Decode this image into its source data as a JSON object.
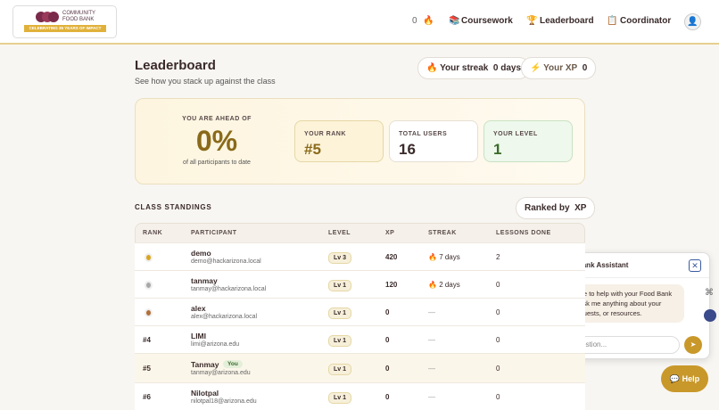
{
  "header": {
    "logo": {
      "line1": "COMMUNITY",
      "line2": "FOOD BANK",
      "banner": "CELEBRATING 35 YEARS OF IMPACT"
    },
    "streak_count": "0",
    "nav": [
      "Coursework",
      "Leaderboard",
      "Coordinator"
    ]
  },
  "page": {
    "title": "Leaderboard",
    "subtitle": "See how you stack up against the class",
    "streak": {
      "label": "Your streak",
      "value": "0 days"
    },
    "xp": {
      "label": "Your XP",
      "value": "0"
    }
  },
  "summary": {
    "ahead_label": "YOU ARE AHEAD OF",
    "percent": "0%",
    "ahead_note": "of all participants to date",
    "cards": [
      {
        "label": "YOUR RANK",
        "value": "#5"
      },
      {
        "label": "TOTAL USERS",
        "value": "16"
      },
      {
        "label": "YOUR LEVEL",
        "value": "1"
      }
    ]
  },
  "standings": {
    "title": "CLASS STANDINGS",
    "ranked_by": {
      "label": "Ranked by",
      "value": "XP"
    },
    "columns": [
      "RANK",
      "PARTICIPANT",
      "LEVEL",
      "XP",
      "STREAK",
      "LESSONS DONE"
    ],
    "rows": [
      {
        "name": "demo",
        "email": "demo@hackarizona.local",
        "level": "Lv 3",
        "xp": "420",
        "streak": "7 days",
        "lessons": "2"
      },
      {
        "name": "tanmay",
        "email": "tanmay@hackarizona.local",
        "level": "Lv 1",
        "xp": "120",
        "streak": "2 days",
        "lessons": "0"
      },
      {
        "name": "alex",
        "email": "alex@hackarizona.local",
        "level": "Lv 1",
        "xp": "0",
        "streak": "—",
        "lessons": "0"
      },
      {
        "rank": "#4",
        "name": "LIMI",
        "email": "limi@arizona.edu",
        "level": "Lv 1",
        "xp": "0",
        "streak": "—",
        "lessons": "0"
      },
      {
        "rank": "#5",
        "name": "Tanmay",
        "badge": "You",
        "email": "tanmay@arizona.edu",
        "level": "Lv 1",
        "xp": "0",
        "streak": "—",
        "lessons": "0"
      },
      {
        "rank": "#6",
        "name": "Nilotpal",
        "email": "nilotpal18@arizona.edu",
        "level": "Lv 1",
        "xp": "0",
        "streak": "—",
        "lessons": "0"
      }
    ]
  },
  "chat": {
    "title": "Food Bank Assistant",
    "message": "Hi! I'm here to help with your Food Bank training. Ask me anything about your lessons, quests, or resources.",
    "placeholder": "Ask a question...",
    "help": "Help"
  }
}
